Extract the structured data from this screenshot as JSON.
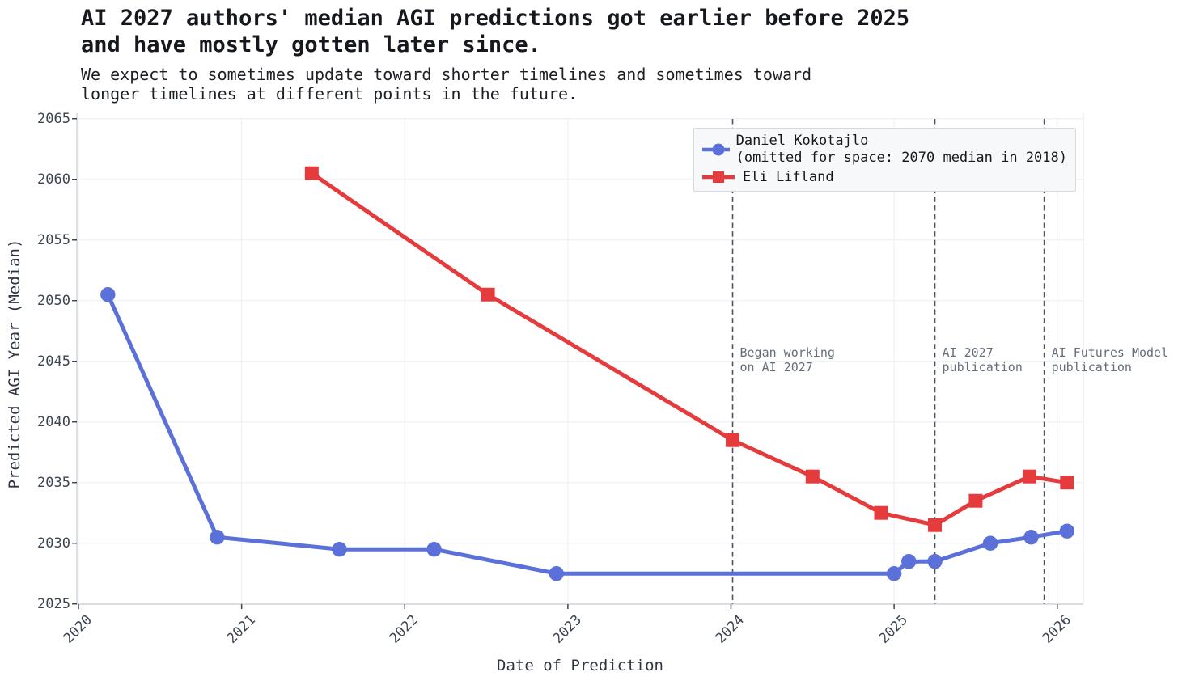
{
  "chart_data": {
    "type": "line",
    "title": "AI 2027 authors' median AGI predictions got earlier before 2025\nand have mostly gotten later since.",
    "subtitle": "We expect to sometimes update toward shorter timelines and sometimes toward\nlonger timelines at different points in the future.",
    "xlabel": "Date of Prediction",
    "ylabel": "Predicted AGI Year (Median)",
    "x_ticks": [
      2020,
      2021,
      2022,
      2023,
      2024,
      2025,
      2026
    ],
    "y_ticks": [
      2025,
      2030,
      2035,
      2040,
      2045,
      2050,
      2055,
      2060,
      2065
    ],
    "xlim": [
      2019.99,
      2026.16
    ],
    "ylim": [
      2024.98,
      2065.45
    ],
    "grid": true,
    "legend_position": "upper right",
    "series": [
      {
        "name": "Daniel Kokotajlo",
        "legend_lines": [
          "Daniel Kokotajlo",
          "(omitted for space: 2070 median in 2018)"
        ],
        "color": "#5b70d8",
        "marker": "circle",
        "points": [
          [
            2020.18,
            2050.5
          ],
          [
            2020.85,
            2030.5
          ],
          [
            2021.6,
            2029.5
          ],
          [
            2022.18,
            2029.5
          ],
          [
            2022.93,
            2027.5
          ],
          [
            2025.0,
            2027.5
          ],
          [
            2025.09,
            2028.5
          ],
          [
            2025.25,
            2028.5
          ],
          [
            2025.59,
            2030.0
          ],
          [
            2025.84,
            2030.5
          ],
          [
            2026.06,
            2031.0
          ]
        ]
      },
      {
        "name": "Eli Lifland",
        "legend_lines": [
          "Eli Lifland"
        ],
        "color": "#e63b3d",
        "marker": "square",
        "points": [
          [
            2021.43,
            2060.5
          ],
          [
            2022.51,
            2050.5
          ],
          [
            2024.01,
            2038.5
          ],
          [
            2024.5,
            2035.5
          ],
          [
            2024.92,
            2032.5
          ],
          [
            2025.25,
            2031.5
          ],
          [
            2025.5,
            2033.5
          ],
          [
            2025.83,
            2035.5
          ],
          [
            2026.06,
            2035.0
          ]
        ]
      }
    ],
    "event_lines": [
      {
        "x": 2024.01,
        "label_lines": [
          "Began working",
          "on AI 2027"
        ]
      },
      {
        "x": 2025.25,
        "label_lines": [
          "AI 2027",
          "publication"
        ]
      },
      {
        "x": 2025.92,
        "label_lines": [
          "AI Futures Model",
          "publication"
        ]
      }
    ],
    "style_colors": {
      "grid": "#ecedf2",
      "spine": "#c8ccd4",
      "right_spine": "#e3e5ea",
      "tick_mark": "#40444c",
      "event_line": "#4d525b",
      "annotation_text": "#666e7b",
      "legend_bg": "#f7f8fa",
      "legend_border": "#d6d9e0"
    }
  }
}
